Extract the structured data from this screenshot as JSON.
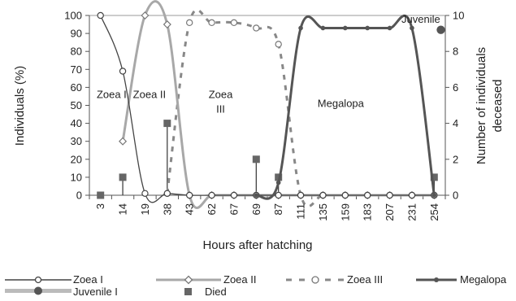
{
  "chart_data": {
    "type": "line",
    "xlabel": "Hours after hatching",
    "ylabel": "Individuals (%)",
    "y2label_lines": [
      "Number of individuals",
      "deceased"
    ],
    "ylim": [
      0,
      100
    ],
    "y2lim": [
      0,
      10
    ],
    "yticks": [
      0,
      10,
      20,
      30,
      40,
      50,
      60,
      70,
      80,
      90,
      100
    ],
    "y2ticks": [
      0,
      2,
      4,
      6,
      8,
      10
    ],
    "categories": [
      "3",
      "14",
      "19",
      "38",
      "43",
      "62",
      "67",
      "69",
      "87",
      "111",
      "135",
      "159",
      "183",
      "207",
      "231",
      "254"
    ],
    "stage_labels": [
      {
        "lines": [
          "Zoea I"
        ],
        "x": 1.0,
        "y": 54
      },
      {
        "lines": [
          "Zoea II"
        ],
        "x": 2.7,
        "y": 54
      },
      {
        "lines": [
          "Zoea",
          "III"
        ],
        "x": 5.9,
        "y": 54
      },
      {
        "lines": [
          "Megalopa"
        ],
        "x": 11.3,
        "y": 49
      },
      {
        "lines": [
          "Juvenile"
        ],
        "x": 14.9,
        "y": 96
      }
    ],
    "series": [
      {
        "name": "Zoea I",
        "color": "#444444",
        "marker": "circle-open",
        "line": "thin",
        "points": [
          [
            0.5,
            100
          ],
          [
            1.5,
            69
          ],
          [
            2.5,
            1
          ],
          [
            3.5,
            1
          ],
          [
            4.5,
            0
          ],
          [
            5.5,
            0
          ],
          [
            6.5,
            0
          ],
          [
            7.5,
            0
          ],
          [
            8.5,
            0
          ],
          [
            9.5,
            0
          ],
          [
            10.5,
            0
          ],
          [
            11.5,
            0
          ],
          [
            12.5,
            0
          ],
          [
            13.5,
            0
          ],
          [
            14.5,
            0
          ],
          [
            15.5,
            0
          ]
        ]
      },
      {
        "name": "Zoea II",
        "color": "#a8a8a8",
        "marker": "diamond-open",
        "line": "thick",
        "points": [
          [
            1.5,
            30
          ],
          [
            2.5,
            100
          ],
          [
            3.5,
            95
          ],
          [
            4.5,
            0
          ],
          [
            5.5,
            0
          ],
          [
            6.5,
            0
          ],
          [
            7.5,
            0
          ],
          [
            8.5,
            0
          ],
          [
            9.5,
            0
          ],
          [
            10.5,
            0
          ],
          [
            11.5,
            0
          ],
          [
            12.5,
            0
          ],
          [
            13.5,
            0
          ],
          [
            14.5,
            0
          ],
          [
            15.5,
            0
          ]
        ]
      },
      {
        "name": "Zoea III",
        "color": "#888888",
        "marker": "circle-open",
        "line": "dashed",
        "points": [
          [
            3.5,
            1
          ],
          [
            4.5,
            96
          ],
          [
            5.5,
            96
          ],
          [
            6.5,
            96
          ],
          [
            7.5,
            93
          ],
          [
            8.5,
            84
          ],
          [
            9.5,
            0
          ],
          [
            10.5,
            0
          ],
          [
            11.5,
            0
          ],
          [
            12.5,
            0
          ],
          [
            13.5,
            0
          ],
          [
            14.5,
            0
          ],
          [
            15.5,
            0
          ]
        ]
      },
      {
        "name": "Megalopa",
        "color": "#555555",
        "marker": "dot",
        "line": "thick",
        "points": [
          [
            7.5,
            0
          ],
          [
            8.5,
            7
          ],
          [
            9.5,
            93
          ],
          [
            10.5,
            93
          ],
          [
            11.5,
            93
          ],
          [
            12.5,
            93
          ],
          [
            13.5,
            93
          ],
          [
            14.5,
            93
          ],
          [
            15.5,
            0
          ]
        ]
      },
      {
        "name": "Juvenile I",
        "color": "#555555",
        "marker": "dot-large",
        "line": "none",
        "points": [
          [
            15.8,
            92
          ]
        ]
      }
    ],
    "died": {
      "name": "Died",
      "color": "#666666",
      "axis": "right",
      "points": [
        [
          0.5,
          0
        ],
        [
          1.5,
          1
        ],
        [
          3.5,
          4
        ],
        [
          7.5,
          2
        ],
        [
          8.5,
          1
        ],
        [
          15.5,
          1
        ]
      ]
    }
  }
}
